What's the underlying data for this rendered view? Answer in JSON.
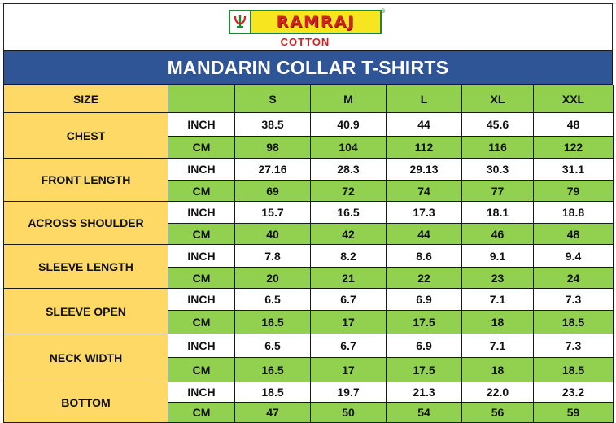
{
  "brand": {
    "logo_text": "RAMRAJ",
    "sub_text": "COTTON",
    "registered_mark": "®",
    "logo_icon": "ramraj-emblem-icon"
  },
  "title": "MANDARIN COLLAR T-SHIRTS",
  "table": {
    "size_header": "SIZE",
    "sizes": [
      "S",
      "M",
      "L",
      "XL",
      "XXL"
    ],
    "rows": [
      {
        "name": "CHEST",
        "inch_label": "INCH",
        "inch": [
          "38.5",
          "40.9",
          "44",
          "45.6",
          "48"
        ],
        "cm_label": "CM",
        "cm": [
          "98",
          "104",
          "112",
          "116",
          "122"
        ]
      },
      {
        "name": "FRONT LENGTH",
        "inch_label": "INCH",
        "inch": [
          "27.16",
          "28.3",
          "29.13",
          "30.3",
          "31.1"
        ],
        "cm_label": "CM",
        "cm": [
          "69",
          "72",
          "74",
          "77",
          "79"
        ]
      },
      {
        "name": "ACROSS SHOULDER",
        "inch_label": "INCH",
        "inch": [
          "15.7",
          "16.5",
          "17.3",
          "18.1",
          "18.8"
        ],
        "cm_label": "CM",
        "cm": [
          "40",
          "42",
          "44",
          "46",
          "48"
        ]
      },
      {
        "name": "SLEEVE LENGTH",
        "inch_label": "INCH",
        "inch": [
          "7.8",
          "8.2",
          "8.6",
          "9.1",
          "9.4"
        ],
        "cm_label": "CM",
        "cm": [
          "20",
          "21",
          "22",
          "23",
          "24"
        ]
      },
      {
        "name": "SLEEVE OPEN",
        "inch_label": "INCH",
        "inch": [
          "6.5",
          "6.7",
          "6.9",
          "7.1",
          "7.3"
        ],
        "cm_label": "CM",
        "cm": [
          "16.5",
          "17",
          "17.5",
          "18",
          "18.5"
        ]
      },
      {
        "name": "NECK WIDTH",
        "inch_label": "INCH",
        "inch": [
          "6.5",
          "6.7",
          "6.9",
          "7.1",
          "7.3"
        ],
        "cm_label": "CM",
        "cm": [
          "16.5",
          "17",
          "17.5",
          "18",
          "18.5"
        ]
      },
      {
        "name": "BOTTOM",
        "inch_label": "INCH",
        "inch": [
          "18.5",
          "19.7",
          "21.3",
          "22.0",
          "23.2"
        ],
        "cm_label": "CM",
        "cm": [
          "47",
          "50",
          "54",
          "56",
          "59"
        ]
      }
    ]
  },
  "colors": {
    "title_bg": "#2f5597",
    "measure_bg": "#ffd966",
    "green_bg": "#92d050",
    "logo_bg": "#f7e51f",
    "logo_text": "#d4211e"
  }
}
